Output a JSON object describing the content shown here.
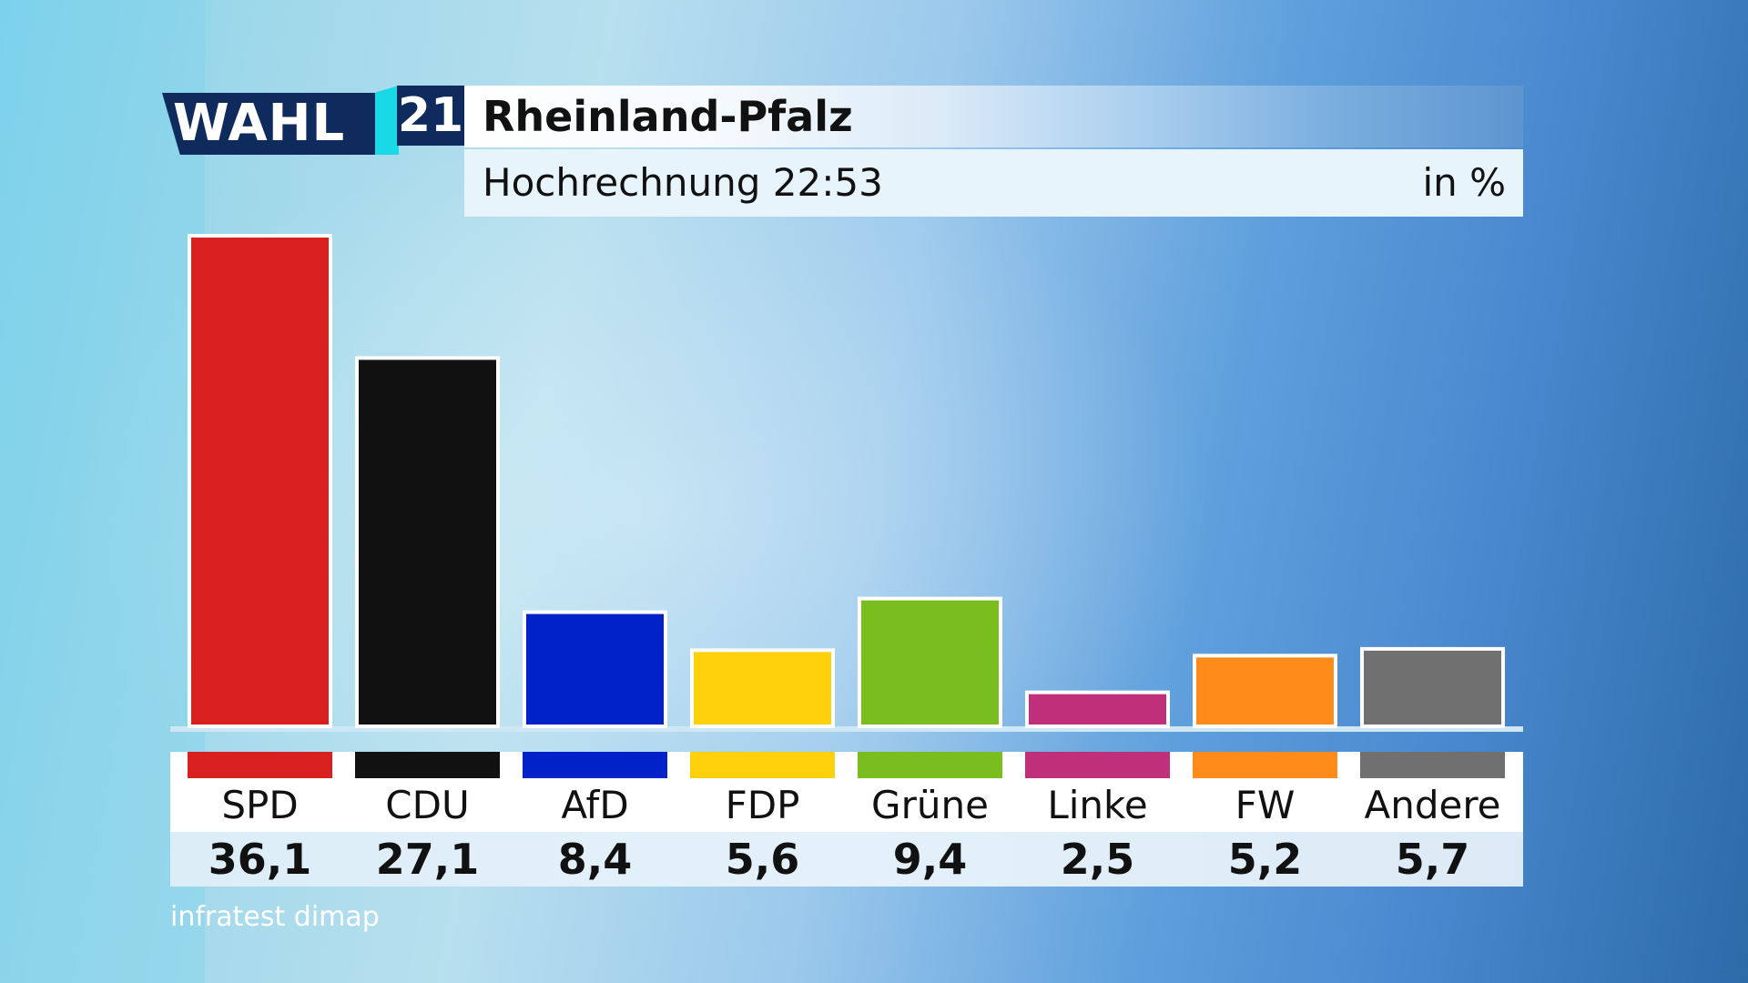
{
  "logo": {
    "wahl": "WAHL",
    "year": "21"
  },
  "header": {
    "title": "Rheinland-Pfalz",
    "subtitle": "Hochrechnung 22:53",
    "unit": "in %"
  },
  "source": "infratest dimap",
  "colors": {
    "bar_border": "#ffffff"
  },
  "chart_data": {
    "type": "bar",
    "title": "Rheinland-Pfalz",
    "subtitle": "Hochrechnung 22:53",
    "unit": "in %",
    "categories": [
      "SPD",
      "CDU",
      "AfD",
      "FDP",
      "Grüne",
      "Linke",
      "FW",
      "Andere"
    ],
    "values": [
      36.1,
      27.1,
      8.4,
      5.6,
      9.4,
      2.5,
      5.2,
      5.7
    ],
    "value_labels": [
      "36,1",
      "27,1",
      "8,4",
      "5,6",
      "9,4",
      "2,5",
      "5,2",
      "5,7"
    ],
    "colors": [
      "#d7201f",
      "#111111",
      "#0022c8",
      "#ffd00c",
      "#7abd1f",
      "#c0307a",
      "#ff8c1a",
      "#707070"
    ],
    "ylim": [
      0,
      36.1
    ],
    "grid": false,
    "legend": "none"
  }
}
